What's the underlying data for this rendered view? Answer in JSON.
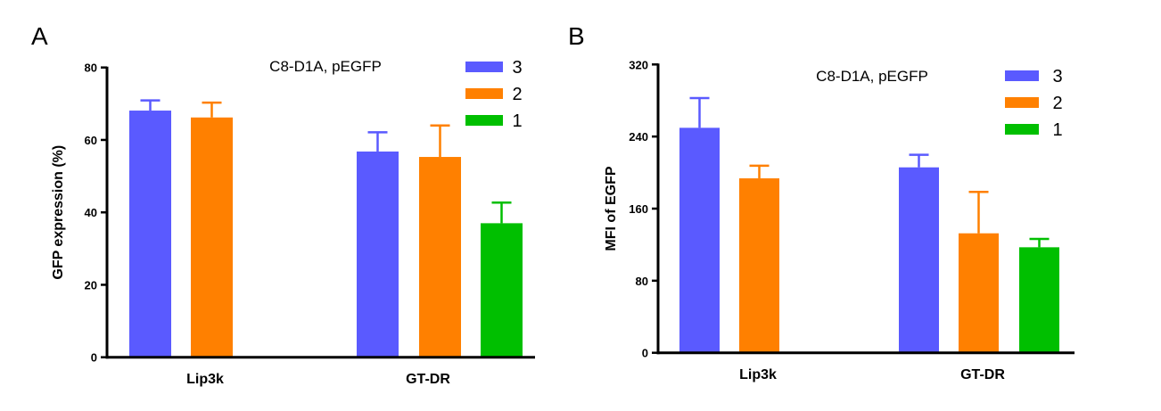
{
  "chart_data": [
    {
      "panel": "A",
      "type": "bar",
      "title": "C8-D1A, pEGFP",
      "xlabel": "",
      "ylabel": "GFP expression (%)",
      "ylim": [
        0,
        80
      ],
      "yticks": [
        0,
        20,
        40,
        60,
        80
      ],
      "categories": [
        "Lip3k",
        "GT-DR"
      ],
      "legend": "top-right",
      "series": [
        {
          "name": "3",
          "color": "#5a5aff",
          "values": [
            68.1,
            56.8
          ],
          "error": [
            2.8,
            5.3
          ]
        },
        {
          "name": "2",
          "color": "#ff8000",
          "values": [
            66.2,
            55.3
          ],
          "error": [
            4.1,
            8.7
          ]
        },
        {
          "name": "1",
          "color": "#00bf00",
          "values": [
            null,
            37.0
          ],
          "error": [
            null,
            5.7
          ]
        }
      ]
    },
    {
      "panel": "B",
      "type": "bar",
      "title": "C8-D1A, pEGFP",
      "xlabel": "",
      "ylabel": "MFI of EGFP",
      "ylim": [
        0,
        320
      ],
      "yticks": [
        0,
        80,
        160,
        240,
        320
      ],
      "categories": [
        "Lip3k",
        "GT-DR"
      ],
      "legend": "top-right",
      "series": [
        {
          "name": "3",
          "color": "#5a5aff",
          "values": [
            249.7,
            205.8
          ],
          "error": [
            33,
            14
          ]
        },
        {
          "name": "2",
          "color": "#ff8000",
          "values": [
            193.6,
            132.6
          ],
          "error": [
            14,
            46
          ]
        },
        {
          "name": "1",
          "color": "#00bf00",
          "values": [
            null,
            117.1
          ],
          "error": [
            null,
            9.3
          ]
        }
      ]
    }
  ]
}
